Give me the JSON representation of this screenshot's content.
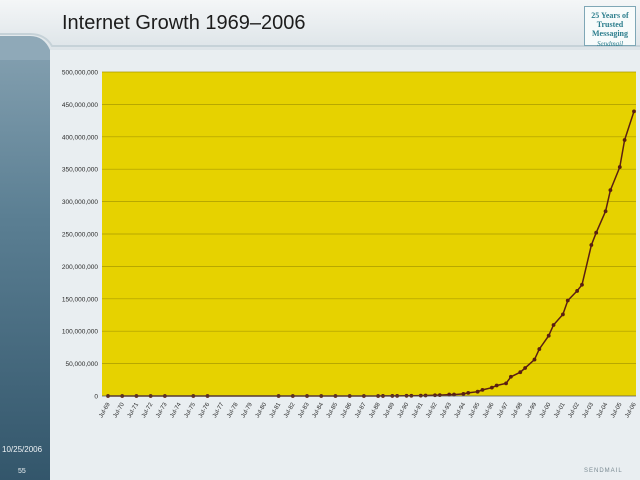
{
  "slide": {
    "title": "Internet Growth 1969–2006",
    "date": "10/25/2006",
    "page": "55",
    "logo_text": "25 Years of Trusted Messaging",
    "logo_signature": "Sendmail",
    "brand": "SENDMAIL"
  },
  "colors": {
    "plot_background": "#e6d200",
    "line": "#5a1f12",
    "marker": "#5a1f12"
  },
  "chart_data": {
    "type": "line",
    "title": "Internet Growth 1969–2006",
    "xlabel": "",
    "ylabel": "",
    "ylim": [
      0,
      500000000
    ],
    "grid": true,
    "legend": "none",
    "y_ticks": [
      "0",
      "50,000,000",
      "100,000,000",
      "150,000,000",
      "200,000,000",
      "250,000,000",
      "300,000,000",
      "350,000,000",
      "400,000,000",
      "450,000,000",
      "500,000,000"
    ],
    "x_ticks": [
      "Jul-69",
      "Jul-70",
      "Jul-71",
      "Jul-72",
      "Jul-73",
      "Jul-74",
      "Jul-75",
      "Jul-76",
      "Jul-77",
      "Jul-78",
      "Jul-79",
      "Jul-80",
      "Jul-81",
      "Jul-82",
      "Jul-83",
      "Jul-84",
      "Jul-85",
      "Jul-86",
      "Jul-87",
      "Jul-88",
      "Jul-89",
      "Jul-90",
      "Jul-91",
      "Jul-92",
      "Jul-93",
      "Jul-94",
      "Jul-95",
      "Jul-96",
      "Jul-97",
      "Jul-98",
      "Jul-99",
      "Jul-00",
      "Jul-01",
      "Jul-02",
      "Jul-03",
      "Jul-04",
      "Jul-05",
      "Jul-06"
    ],
    "series": [
      {
        "x": [
          1969.58,
          1970.58,
          1971.58,
          1972.58,
          1973.58,
          1975.58,
          1976.58,
          1981.58,
          1982.58,
          1983.58,
          1984.58,
          1985.58,
          1986.58,
          1987.58,
          1988.58,
          1988.92,
          1989.58,
          1989.92,
          1990.58,
          1990.92,
          1991.58,
          1991.92,
          1992.58,
          1992.92,
          1993.58,
          1993.92,
          1994.58,
          1994.92,
          1995.58,
          1995.92,
          1996.58,
          1996.92,
          1997.58,
          1997.92,
          1998.58,
          1998.92,
          1999.58,
          1999.92,
          2000.58,
          2000.92,
          2001.58,
          2001.92,
          2002.58,
          2002.92,
          2003.58,
          2003.92,
          2004.58,
          2004.92,
          2005.58,
          2005.92,
          2006.58
        ],
        "y": [
          4,
          23,
          23,
          31,
          35,
          63,
          111,
          213,
          235,
          1000,
          1961,
          5089,
          5089,
          28174,
          56000,
          80000,
          130000,
          159000,
          313000,
          376000,
          617000,
          727000,
          1136000,
          1313000,
          2217000,
          2217000,
          3212000,
          4852000,
          6642000,
          9472000,
          12881000,
          16146000,
          19540000,
          29670000,
          36739000,
          43230000,
          56218000,
          72398000,
          93047785,
          109574429,
          125888197,
          147344723,
          162128493,
          171638297,
          233000000,
          252000000,
          285139107,
          317646084,
          353284187,
          394991609,
          439286364
        ]
      }
    ]
  }
}
